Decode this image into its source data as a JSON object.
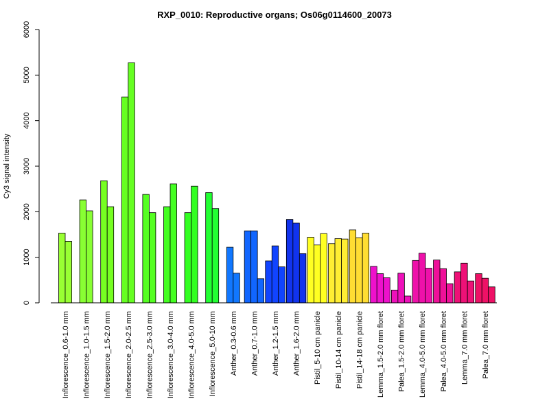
{
  "chart_data": {
    "type": "bar",
    "title": "RXP_0010: Reproductive organs; Os06g0114600_20073",
    "ylabel": "Cy3 signal intensity",
    "xlabel": "",
    "ylim": [
      0,
      6000
    ],
    "yticks": [
      0,
      1000,
      2000,
      3000,
      4000,
      5000,
      6000
    ],
    "grid": false,
    "legend": "none",
    "groups": [
      {
        "label": "Inflorescence_0.6-1.0 mm",
        "color": "#99ff33",
        "values": [
          1530,
          1350
        ]
      },
      {
        "label": "Inflorescence_1.0-1.5 mm",
        "color": "#88ff33",
        "values": [
          2260,
          2020
        ]
      },
      {
        "label": "Inflorescence_1.5-2.0 mm",
        "color": "#77ff22",
        "values": [
          2680,
          2110
        ]
      },
      {
        "label": "Inflorescence_2.0-2.5 mm",
        "color": "#66ff22",
        "values": [
          4520,
          5270
        ]
      },
      {
        "label": "Inflorescence_2.5-3.0 mm",
        "color": "#55ff22",
        "values": [
          2380,
          1980
        ]
      },
      {
        "label": "Inflorescence_3.0-4.0 mm",
        "color": "#44ff22",
        "values": [
          2110,
          2610
        ]
      },
      {
        "label": "Inflorescence_4.0-5.0 mm",
        "color": "#33ff22",
        "values": [
          1980,
          2560
        ]
      },
      {
        "label": "Inflorescence_5.0-10 mm",
        "color": "#22ff33",
        "values": [
          2420,
          2070
        ]
      },
      {
        "label": "Anther_0.3-0.6 mm",
        "color": "#1177ff",
        "values": [
          1220,
          650
        ]
      },
      {
        "label": "Anther_0.7-1.0 mm",
        "color": "#1166ff",
        "values": [
          1580,
          1580,
          530
        ]
      },
      {
        "label": "Anther_1.2-1.5 mm",
        "color": "#1144ff",
        "values": [
          920,
          1250,
          790
        ]
      },
      {
        "label": "Anther_1.6-2.0 mm",
        "color": "#1133ee",
        "values": [
          1830,
          1750,
          1080
        ]
      },
      {
        "label": "Pistil_5-10 cm panicle",
        "color": "#ffff22",
        "values": [
          1440,
          1270,
          1520
        ]
      },
      {
        "label": "Pistil_10-14 cm panicle",
        "color": "#ffee33",
        "values": [
          1300,
          1410,
          1400
        ]
      },
      {
        "label": "Pistil_14-18 cm panicle",
        "color": "#ffdd33",
        "values": [
          1600,
          1430,
          1530
        ]
      },
      {
        "label": "Lemma_1.5-2.0 mm floret",
        "color": "#ee11cc",
        "values": [
          800,
          640,
          550
        ]
      },
      {
        "label": "Palea_1.5-2.0 mm floret",
        "color": "#ee11bb",
        "values": [
          280,
          650,
          150
        ]
      },
      {
        "label": "Lemma_4.0-5.0 mm floret",
        "color": "#ee11aa",
        "values": [
          930,
          1090,
          760
        ]
      },
      {
        "label": "Palea_4.0-5.0 mm floret",
        "color": "#ee1199",
        "values": [
          940,
          750,
          420
        ]
      },
      {
        "label": "Lemma_7.0 mm floret",
        "color": "#ee1177",
        "values": [
          680,
          870,
          480
        ]
      },
      {
        "label": "Palea_7.0 mm floret",
        "color": "#ee1166",
        "values": [
          640,
          540,
          350
        ]
      }
    ]
  }
}
